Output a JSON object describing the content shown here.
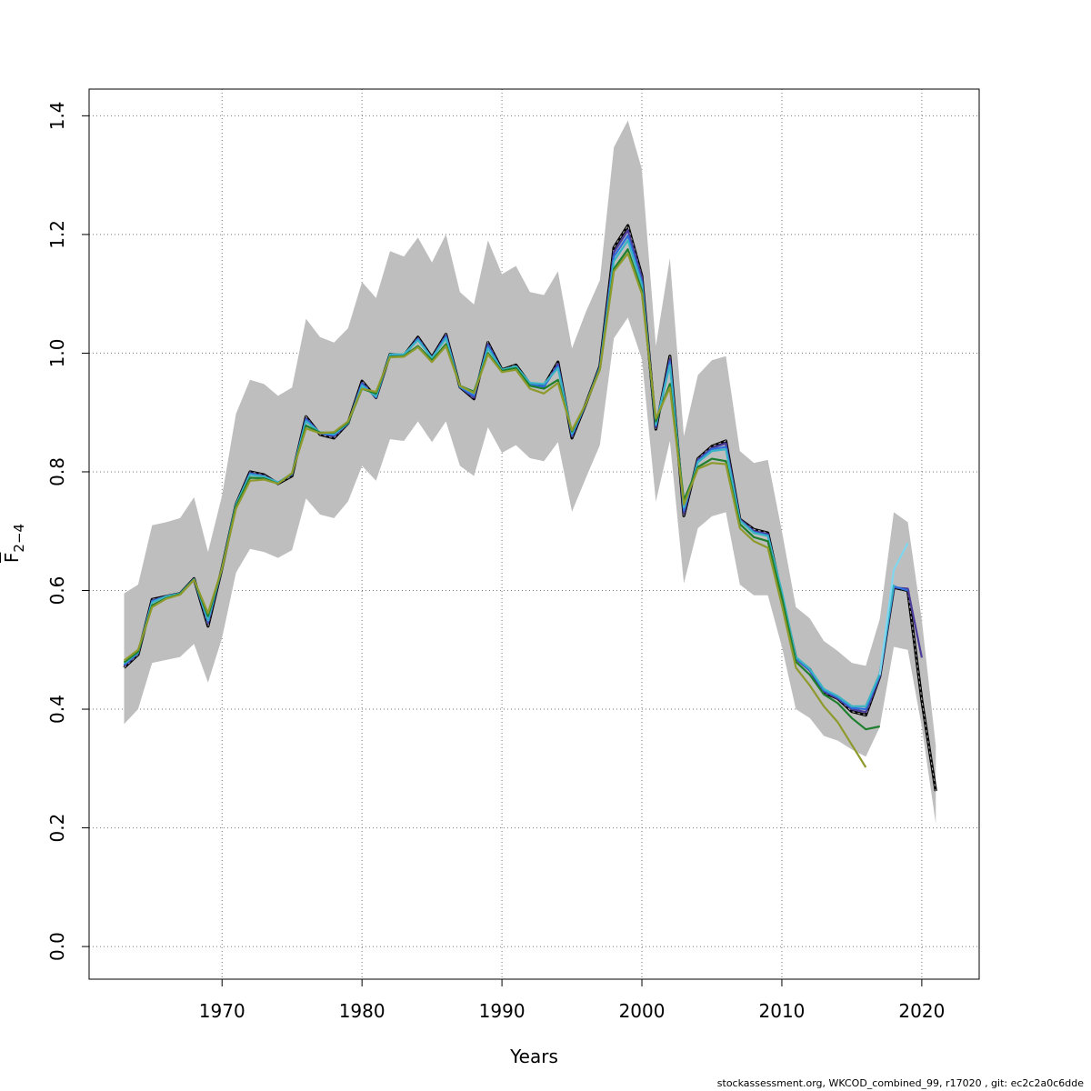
{
  "chart_data": {
    "type": "line",
    "xlabel": "Years",
    "ylabel_main": "F",
    "ylabel_sub": "2−4",
    "xlim": [
      1960.5,
      2024.1
    ],
    "ylim": [
      -0.055,
      1.445
    ],
    "x_ticks": [
      1970,
      1980,
      1990,
      2000,
      2010,
      2020
    ],
    "x_tick_labels": [
      "1970",
      "1980",
      "1990",
      "2000",
      "2010",
      "2020"
    ],
    "y_ticks": [
      0.0,
      0.2,
      0.4,
      0.6,
      0.8,
      1.0,
      1.2,
      1.4
    ],
    "y_tick_labels": [
      "0.0",
      "0.2",
      "0.4",
      "0.6",
      "0.8",
      "1.0",
      "1.2",
      "1.4"
    ],
    "grid": true,
    "confidence_band": {
      "x": [
        1963,
        1964,
        1965,
        1966,
        1967,
        1968,
        1969,
        1970,
        1971,
        1972,
        1973,
        1974,
        1975,
        1976,
        1977,
        1978,
        1979,
        1980,
        1981,
        1982,
        1983,
        1984,
        1985,
        1986,
        1987,
        1988,
        1989,
        1990,
        1991,
        1992,
        1993,
        1994,
        1995,
        1996,
        1997,
        1998,
        1999,
        2000,
        2001,
        2002,
        2003,
        2004,
        2005,
        2006,
        2007,
        2008,
        2009,
        2010,
        2011,
        2012,
        2013,
        2014,
        2015,
        2016,
        2017,
        2018,
        2019,
        2020,
        2021
      ],
      "lower": [
        0.375,
        0.4,
        0.478,
        0.483,
        0.488,
        0.51,
        0.445,
        0.52,
        0.63,
        0.67,
        0.665,
        0.655,
        0.668,
        0.755,
        0.728,
        0.722,
        0.75,
        0.81,
        0.785,
        0.855,
        0.852,
        0.885,
        0.85,
        0.885,
        0.81,
        0.793,
        0.875,
        0.832,
        0.845,
        0.823,
        0.818,
        0.85,
        0.733,
        0.79,
        0.845,
        1.025,
        1.06,
        0.99,
        0.75,
        0.852,
        0.612,
        0.705,
        0.725,
        0.732,
        0.61,
        0.592,
        0.592,
        0.505,
        0.4,
        0.385,
        0.355,
        0.347,
        0.332,
        0.32,
        0.37,
        0.505,
        0.5,
        0.37,
        0.207
      ],
      "upper": [
        0.595,
        0.61,
        0.71,
        0.715,
        0.722,
        0.757,
        0.665,
        0.76,
        0.898,
        0.955,
        0.948,
        0.928,
        0.942,
        1.058,
        1.027,
        1.018,
        1.042,
        1.12,
        1.093,
        1.172,
        1.163,
        1.195,
        1.153,
        1.2,
        1.103,
        1.082,
        1.19,
        1.133,
        1.147,
        1.103,
        1.098,
        1.138,
        1.008,
        1.07,
        1.123,
        1.347,
        1.392,
        1.31,
        1.012,
        1.16,
        0.86,
        0.963,
        0.988,
        0.995,
        0.835,
        0.815,
        0.82,
        0.7,
        0.572,
        0.553,
        0.515,
        0.498,
        0.478,
        0.473,
        0.552,
        0.732,
        0.715,
        0.55,
        0.338
      ]
    },
    "series": [
      {
        "color": "#000000",
        "dashed": true,
        "x": [
          1963,
          1964,
          1965,
          1966,
          1967,
          1968,
          1969,
          1970,
          1971,
          1972,
          1973,
          1974,
          1975,
          1976,
          1977,
          1978,
          1979,
          1980,
          1981,
          1982,
          1983,
          1984,
          1985,
          1986,
          1987,
          1988,
          1989,
          1990,
          1991,
          1992,
          1993,
          1994,
          1995,
          1996,
          1997,
          1998,
          1999,
          2000,
          2001,
          2002,
          2003,
          2004,
          2005,
          2006,
          2007,
          2008,
          2009,
          2010,
          2011,
          2012,
          2013,
          2014,
          2015,
          2016,
          2017,
          2018,
          2019,
          2020,
          2021
        ],
        "y": [
          0.47,
          0.492,
          0.585,
          0.59,
          0.595,
          0.62,
          0.54,
          0.638,
          0.745,
          0.8,
          0.795,
          0.78,
          0.793,
          0.893,
          0.863,
          0.857,
          0.882,
          0.953,
          0.925,
          0.998,
          0.996,
          1.027,
          0.993,
          1.032,
          0.943,
          0.923,
          1.018,
          0.972,
          0.98,
          0.948,
          0.945,
          0.985,
          0.857,
          0.915,
          0.978,
          1.178,
          1.215,
          1.13,
          0.872,
          0.995,
          0.726,
          0.822,
          0.843,
          0.852,
          0.72,
          0.703,
          0.697,
          0.59,
          0.486,
          0.467,
          0.428,
          0.418,
          0.396,
          0.39,
          0.455,
          0.605,
          0.6,
          0.415,
          0.262
        ]
      },
      {
        "color": "#4B3B9A",
        "x": [
          1963,
          1964,
          1965,
          1966,
          1967,
          1968,
          1969,
          1970,
          1971,
          1972,
          1973,
          1974,
          1975,
          1976,
          1977,
          1978,
          1979,
          1980,
          1981,
          1982,
          1983,
          1984,
          1985,
          1986,
          1987,
          1988,
          1989,
          1990,
          1991,
          1992,
          1993,
          1994,
          1995,
          1996,
          1997,
          1998,
          1999,
          2000,
          2001,
          2002,
          2003,
          2004,
          2005,
          2006,
          2007,
          2008,
          2009,
          2010,
          2011,
          2012,
          2013,
          2014,
          2015,
          2016,
          2017,
          2018,
          2019,
          2020
        ],
        "y": [
          0.473,
          0.494,
          0.583,
          0.59,
          0.595,
          0.619,
          0.545,
          0.638,
          0.745,
          0.798,
          0.793,
          0.782,
          0.795,
          0.89,
          0.865,
          0.86,
          0.882,
          0.95,
          0.925,
          0.997,
          0.996,
          1.025,
          0.992,
          1.03,
          0.943,
          0.925,
          1.015,
          0.971,
          0.978,
          0.947,
          0.943,
          0.982,
          0.86,
          0.915,
          0.977,
          1.17,
          1.207,
          1.127,
          0.875,
          0.99,
          0.73,
          0.82,
          0.84,
          0.848,
          0.72,
          0.7,
          0.695,
          0.592,
          0.485,
          0.465,
          0.43,
          0.418,
          0.4,
          0.395,
          0.455,
          0.605,
          0.603,
          0.487
        ]
      },
      {
        "color": "#2E6EDB",
        "x": [
          1963,
          1964,
          1965,
          1966,
          1967,
          1968,
          1969,
          1970,
          1971,
          1972,
          1973,
          1974,
          1975,
          1976,
          1977,
          1978,
          1979,
          1980,
          1981,
          1982,
          1983,
          1984,
          1985,
          1986,
          1987,
          1988,
          1989,
          1990,
          1991,
          1992,
          1993,
          1994,
          1995,
          1996,
          1997,
          1998,
          1999,
          2000,
          2001,
          2002,
          2003,
          2004,
          2005,
          2006,
          2007,
          2008,
          2009,
          2010,
          2011,
          2012,
          2013,
          2014,
          2015,
          2016,
          2017,
          2018,
          2019
        ],
        "y": [
          0.475,
          0.495,
          0.582,
          0.59,
          0.595,
          0.619,
          0.548,
          0.638,
          0.745,
          0.797,
          0.792,
          0.782,
          0.796,
          0.888,
          0.865,
          0.862,
          0.882,
          0.948,
          0.926,
          0.997,
          0.996,
          1.024,
          0.991,
          1.028,
          0.943,
          0.928,
          1.012,
          0.971,
          0.977,
          0.947,
          0.944,
          0.978,
          0.862,
          0.915,
          0.976,
          1.163,
          1.198,
          1.12,
          0.878,
          0.985,
          0.735,
          0.818,
          0.838,
          0.842,
          0.718,
          0.698,
          0.693,
          0.595,
          0.486,
          0.466,
          0.432,
          0.42,
          0.402,
          0.4,
          0.458,
          0.607,
          0.6
        ]
      },
      {
        "color": "#39B4C4",
        "x": [
          1963,
          1964,
          1965,
          1966,
          1967,
          1968,
          1969,
          1970,
          1971,
          1972,
          1973,
          1974,
          1975,
          1976,
          1977,
          1978,
          1979,
          1980,
          1981,
          1982,
          1983,
          1984,
          1985,
          1986,
          1987,
          1988,
          1989,
          1990,
          1991,
          1992,
          1993,
          1994,
          1995,
          1996,
          1997,
          1998,
          1999,
          2000,
          2001,
          2002,
          2003,
          2004,
          2005,
          2006,
          2007,
          2008,
          2009,
          2010,
          2011,
          2012,
          2013,
          2014,
          2015,
          2016,
          2017,
          2018
        ],
        "y": [
          0.477,
          0.496,
          0.58,
          0.59,
          0.595,
          0.619,
          0.55,
          0.638,
          0.745,
          0.795,
          0.792,
          0.782,
          0.797,
          0.885,
          0.866,
          0.864,
          0.882,
          0.945,
          0.927,
          0.998,
          0.998,
          1.022,
          0.992,
          1.025,
          0.944,
          0.932,
          1.008,
          0.972,
          0.978,
          0.95,
          0.948,
          0.975,
          0.865,
          0.915,
          0.975,
          1.155,
          1.19,
          1.115,
          0.88,
          0.98,
          0.74,
          0.816,
          0.835,
          0.838,
          0.718,
          0.697,
          0.692,
          0.598,
          0.488,
          0.468,
          0.434,
          0.422,
          0.405,
          0.405,
          0.46,
          0.61
        ]
      },
      {
        "color": "#7FD6EE",
        "x": [
          2017,
          2018,
          2019
        ],
        "y": [
          0.458,
          0.635,
          0.68
        ]
      },
      {
        "color": "#1E7F2E",
        "x": [
          1963,
          1964,
          1965,
          1966,
          1967,
          1968,
          1969,
          1970,
          1971,
          1972,
          1973,
          1974,
          1975,
          1976,
          1977,
          1978,
          1979,
          1980,
          1981,
          1982,
          1983,
          1984,
          1985,
          1986,
          1987,
          1988,
          1989,
          1990,
          1991,
          1992,
          1993,
          1994,
          1995,
          1996,
          1997,
          1998,
          1999,
          2000,
          2001,
          2002,
          2003,
          2004,
          2005,
          2006,
          2007,
          2008,
          2009,
          2010,
          2011,
          2012,
          2013,
          2014,
          2015,
          2016,
          2017
        ],
        "y": [
          0.479,
          0.497,
          0.575,
          0.587,
          0.594,
          0.618,
          0.557,
          0.637,
          0.742,
          0.79,
          0.789,
          0.78,
          0.797,
          0.878,
          0.866,
          0.866,
          0.883,
          0.94,
          0.932,
          0.994,
          0.995,
          1.012,
          0.988,
          1.015,
          0.945,
          0.935,
          1.0,
          0.97,
          0.975,
          0.945,
          0.94,
          0.955,
          0.868,
          0.915,
          0.973,
          1.142,
          1.175,
          1.105,
          0.885,
          0.948,
          0.752,
          0.808,
          0.822,
          0.818,
          0.712,
          0.69,
          0.683,
          0.588,
          0.48,
          0.458,
          0.425,
          0.41,
          0.385,
          0.366,
          0.371
        ]
      },
      {
        "color": "#8F9A2C",
        "x": [
          1963,
          1964,
          1965,
          1966,
          1967,
          1968,
          1969,
          1970,
          1971,
          1972,
          1973,
          1974,
          1975,
          1976,
          1977,
          1978,
          1979,
          1980,
          1981,
          1982,
          1983,
          1984,
          1985,
          1986,
          1987,
          1988,
          1989,
          1990,
          1991,
          1992,
          1993,
          1994,
          1995,
          1996,
          1997,
          1998,
          1999,
          2000,
          2001,
          2002,
          2003,
          2004,
          2005,
          2006,
          2007,
          2008,
          2009,
          2010,
          2011,
          2012,
          2013,
          2014,
          2015,
          2016
        ],
        "y": [
          0.482,
          0.5,
          0.572,
          0.586,
          0.593,
          0.618,
          0.562,
          0.637,
          0.738,
          0.785,
          0.787,
          0.78,
          0.798,
          0.873,
          0.865,
          0.867,
          0.885,
          0.94,
          0.935,
          0.993,
          0.994,
          1.01,
          0.985,
          1.012,
          0.945,
          0.933,
          0.998,
          0.968,
          0.972,
          0.94,
          0.932,
          0.95,
          0.87,
          0.915,
          0.972,
          1.138,
          1.168,
          1.1,
          0.89,
          0.942,
          0.745,
          0.805,
          0.815,
          0.813,
          0.705,
          0.683,
          0.672,
          0.575,
          0.47,
          0.44,
          0.405,
          0.378,
          0.34,
          0.302
        ]
      }
    ]
  },
  "footer_text": "stockassessment.org, WKCOD_combined_99, r17020 , git: ec2c2a0c6dde"
}
